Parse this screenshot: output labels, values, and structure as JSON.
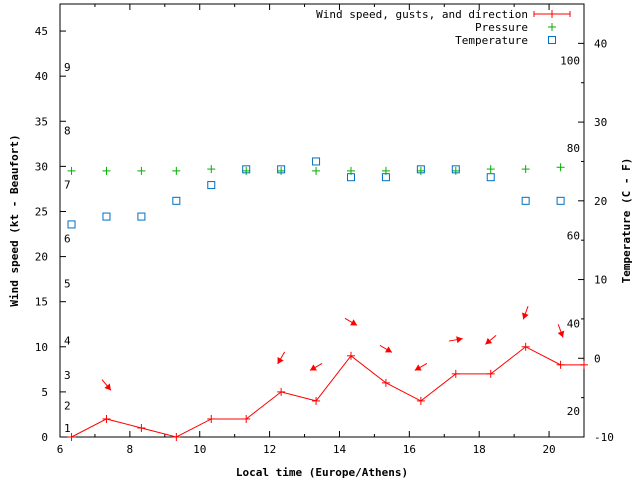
{
  "chart_data": {
    "type": "line",
    "title": "",
    "xlabel": "Local time (Europe/Athens)",
    "ylabel": "Wind speed (kt - Beaufort)",
    "y2label": "Temperature (C - F)",
    "xlim": [
      6,
      21
    ],
    "ylim": [
      0,
      48
    ],
    "y2lim": [
      -10,
      45
    ],
    "x_ticks": [
      6,
      8,
      10,
      12,
      14,
      16,
      18,
      20
    ],
    "y_ticks": [
      0,
      5,
      10,
      15,
      20,
      25,
      30,
      35,
      40,
      45
    ],
    "y2_ticks": [
      -10,
      0,
      10,
      20,
      30,
      40
    ],
    "legend_position": "top-right",
    "legend": [
      "Wind speed, gusts, and direction",
      "Pressure",
      "Temperature"
    ],
    "series": [
      {
        "name": "Wind speed, gusts, and direction",
        "color": "#ff0000",
        "x": [
          6.33,
          7.33,
          8.33,
          9.33,
          10.33,
          11.33,
          12.33,
          13.33,
          14.33,
          15.33,
          16.33,
          17.33,
          18.33,
          19.33,
          20.33,
          21
        ],
        "values": [
          0,
          2,
          1,
          0,
          2,
          2,
          5,
          4,
          9,
          6,
          4,
          7,
          7,
          10,
          8,
          8
        ]
      },
      {
        "name": "Pressure",
        "color": "#00b000",
        "x": [
          6.33,
          7.33,
          8.33,
          9.33,
          10.33,
          11.33,
          12.33,
          13.33,
          14.33,
          15.33,
          16.33,
          17.33,
          18.33,
          19.33,
          20.33
        ],
        "values": [
          29.5,
          29.5,
          29.5,
          29.5,
          29.7,
          29.5,
          29.5,
          29.5,
          29.5,
          29.5,
          29.5,
          29.5,
          29.7,
          29.7,
          29.9
        ]
      },
      {
        "name": "Temperature",
        "color": "#0070c0",
        "axis": "y2",
        "x": [
          6.33,
          7.33,
          8.33,
          9.33,
          10.33,
          11.33,
          12.33,
          13.33,
          14.33,
          15.33,
          16.33,
          17.33,
          18.33,
          19.33,
          20.33
        ],
        "values": [
          17,
          18,
          18,
          20,
          22,
          24,
          24,
          25,
          23,
          23,
          24,
          24,
          23,
          20,
          20
        ]
      }
    ],
    "wind_direction_deg": [
      null,
      320,
      null,
      null,
      null,
      null,
      30,
      60,
      300,
      300,
      60,
      260,
      50,
      20,
      340
    ],
    "beaufort_labels": [
      {
        "text": "1",
        "speed": 1
      },
      {
        "text": "2",
        "speed": 3.5
      },
      {
        "text": "3",
        "speed": 6.9
      },
      {
        "text": "4",
        "speed": 10.7
      },
      {
        "text": "5",
        "speed": 17
      },
      {
        "text": "6",
        "speed": 22
      },
      {
        "text": "7",
        "speed": 28
      },
      {
        "text": "8",
        "speed": 34
      },
      {
        "text": "9",
        "speed": 41
      }
    ],
    "fahrenheit_labels": [
      {
        "text": "20",
        "celsius": -6.7
      },
      {
        "text": "40",
        "celsius": 4.4
      },
      {
        "text": "60",
        "celsius": 15.6
      },
      {
        "text": "80",
        "celsius": 26.7
      },
      {
        "text": "100",
        "celsius": 37.8
      }
    ]
  }
}
